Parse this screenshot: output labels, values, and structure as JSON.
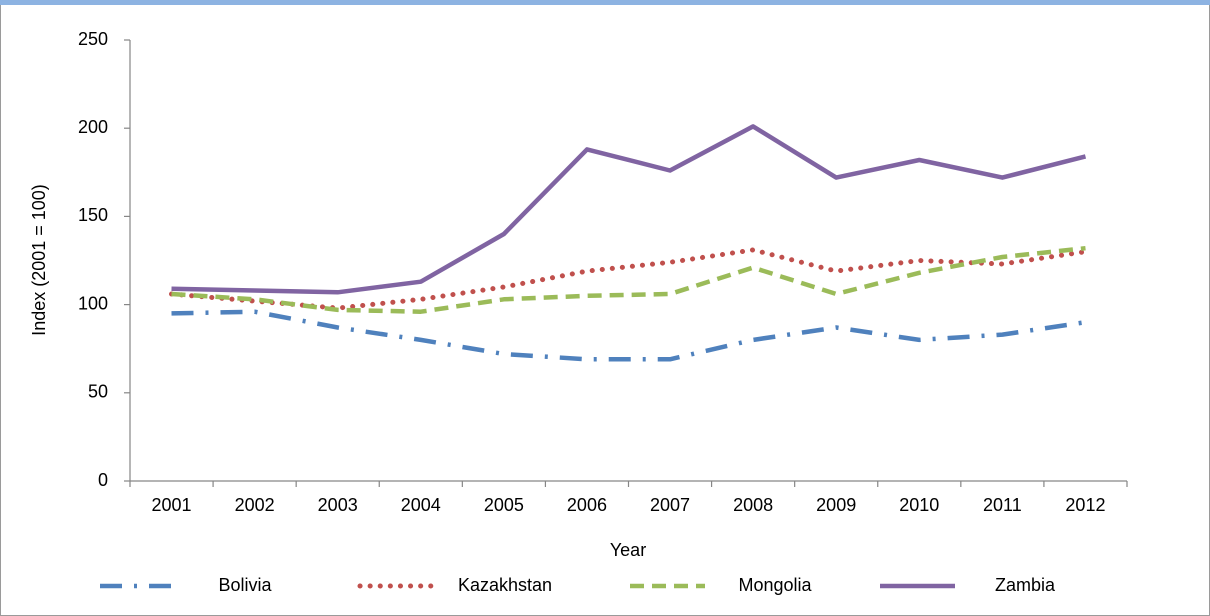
{
  "chart_data": {
    "type": "line",
    "x_label": "Year",
    "y_label": "Index (2001 = 100)",
    "categories": [
      "2001",
      "2002",
      "2003",
      "2004",
      "2005",
      "2006",
      "2007",
      "2008",
      "2009",
      "2010",
      "2011",
      "2012"
    ],
    "series": [
      {
        "name": "Bolivia",
        "color": "#4f81bd",
        "style": "dash-dot",
        "values": [
          95,
          96,
          87,
          80,
          72,
          69,
          69,
          80,
          87,
          80,
          83,
          90
        ]
      },
      {
        "name": "Kazakhstan",
        "color": "#c0504d",
        "style": "dot",
        "values": [
          106,
          102,
          98,
          103,
          110,
          119,
          124,
          131,
          119,
          125,
          123,
          130
        ]
      },
      {
        "name": "Mongolia",
        "color": "#9bbb59",
        "style": "dash",
        "values": [
          106,
          103,
          97,
          96,
          103,
          105,
          106,
          121,
          106,
          118,
          127,
          132
        ]
      },
      {
        "name": "Zambia",
        "color": "#8064a2",
        "style": "solid",
        "values": [
          109,
          108,
          107,
          113,
          140,
          188,
          176,
          201,
          172,
          182,
          172,
          184
        ]
      }
    ],
    "ylim": [
      0,
      250
    ],
    "yticks": [
      0,
      50,
      100,
      150,
      200,
      250
    ],
    "grid": false,
    "legend": "bottom"
  }
}
